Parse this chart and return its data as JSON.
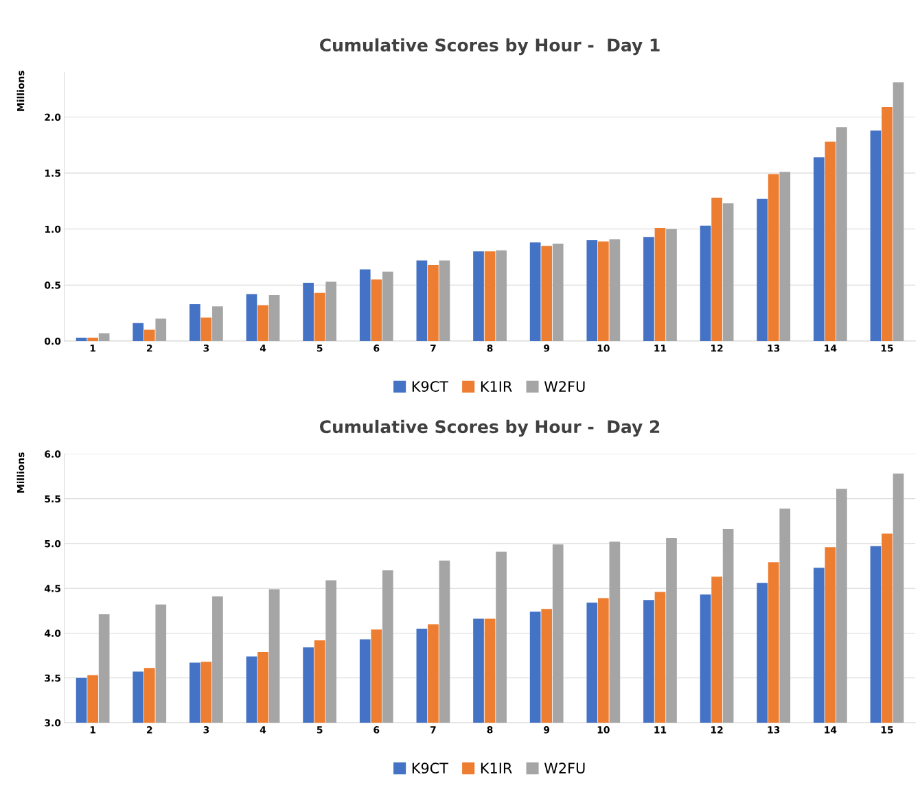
{
  "chart_data": [
    {
      "type": "bar",
      "title": "Cumulative Scores by Hour -  Day 1",
      "ylabel": "Millions",
      "categories": [
        "1",
        "2",
        "3",
        "4",
        "5",
        "6",
        "7",
        "8",
        "9",
        "10",
        "11",
        "12",
        "13",
        "14",
        "15"
      ],
      "ylim": [
        0,
        2.4
      ],
      "series": [
        {
          "name": "K9CT",
          "color": "#4472c4",
          "values": [
            0.03,
            0.16,
            0.33,
            0.42,
            0.52,
            0.64,
            0.72,
            0.8,
            0.88,
            0.9,
            0.93,
            1.03,
            1.27,
            1.64,
            1.88
          ]
        },
        {
          "name": "K1IR",
          "color": "#ed7d31",
          "values": [
            0.03,
            0.1,
            0.21,
            0.32,
            0.43,
            0.55,
            0.68,
            0.8,
            0.85,
            0.89,
            1.01,
            1.28,
            1.49,
            1.78,
            2.09
          ]
        },
        {
          "name": "W2FU",
          "color": "#a5a5a5",
          "values": [
            0.07,
            0.2,
            0.31,
            0.41,
            0.53,
            0.62,
            0.72,
            0.81,
            0.87,
            0.91,
            1.0,
            1.23,
            1.51,
            1.91,
            2.31
          ]
        }
      ],
      "yticks": [
        {
          "value": 0,
          "label": "0.0"
        },
        {
          "value": 0.5,
          "label": "0.5"
        },
        {
          "value": 1,
          "label": "1.0"
        },
        {
          "value": 1.5,
          "label": "1.5"
        },
        {
          "value": 2,
          "label": "2.0"
        }
      ],
      "grid": "y",
      "legend": "bottom"
    },
    {
      "type": "bar",
      "title": "Cumulative Scores by Hour -  Day 2",
      "ylabel": "Millions",
      "categories": [
        "1",
        "2",
        "3",
        "4",
        "5",
        "6",
        "7",
        "8",
        "9",
        "10",
        "11",
        "12",
        "13",
        "14",
        "15"
      ],
      "series": [
        {
          "name": "K9CT",
          "color": "#4472c4",
          "values": [
            3.5,
            3.57,
            3.67,
            3.74,
            3.84,
            3.93,
            4.05,
            4.16,
            4.24,
            4.34,
            4.37,
            4.43,
            4.56,
            4.73,
            4.97
          ]
        },
        {
          "name": "K1IR",
          "color": "#ed7d31",
          "values": [
            3.53,
            3.61,
            3.68,
            3.79,
            3.92,
            4.04,
            4.1,
            4.16,
            4.27,
            4.39,
            4.46,
            4.63,
            4.79,
            4.96,
            5.11
          ]
        },
        {
          "name": "W2FU",
          "color": "#a5a5a5",
          "values": [
            4.21,
            4.32,
            4.41,
            4.49,
            4.59,
            4.7,
            4.81,
            4.91,
            4.99,
            5.02,
            5.06,
            5.16,
            5.39,
            5.61,
            5.78
          ]
        }
      ],
      "ylim": [
        3,
        6
      ],
      "yticks": [
        {
          "value": 3,
          "label": "3.0"
        },
        {
          "value": 3.5,
          "label": "3.5"
        },
        {
          "value": 4,
          "label": "4.0"
        },
        {
          "value": 4.5,
          "label": "4.5"
        },
        {
          "value": 5,
          "label": "5.0"
        },
        {
          "value": 5.5,
          "label": "5.5"
        },
        {
          "value": 6,
          "label": "6.0"
        }
      ],
      "grid": "y",
      "legend": "bottom"
    }
  ]
}
